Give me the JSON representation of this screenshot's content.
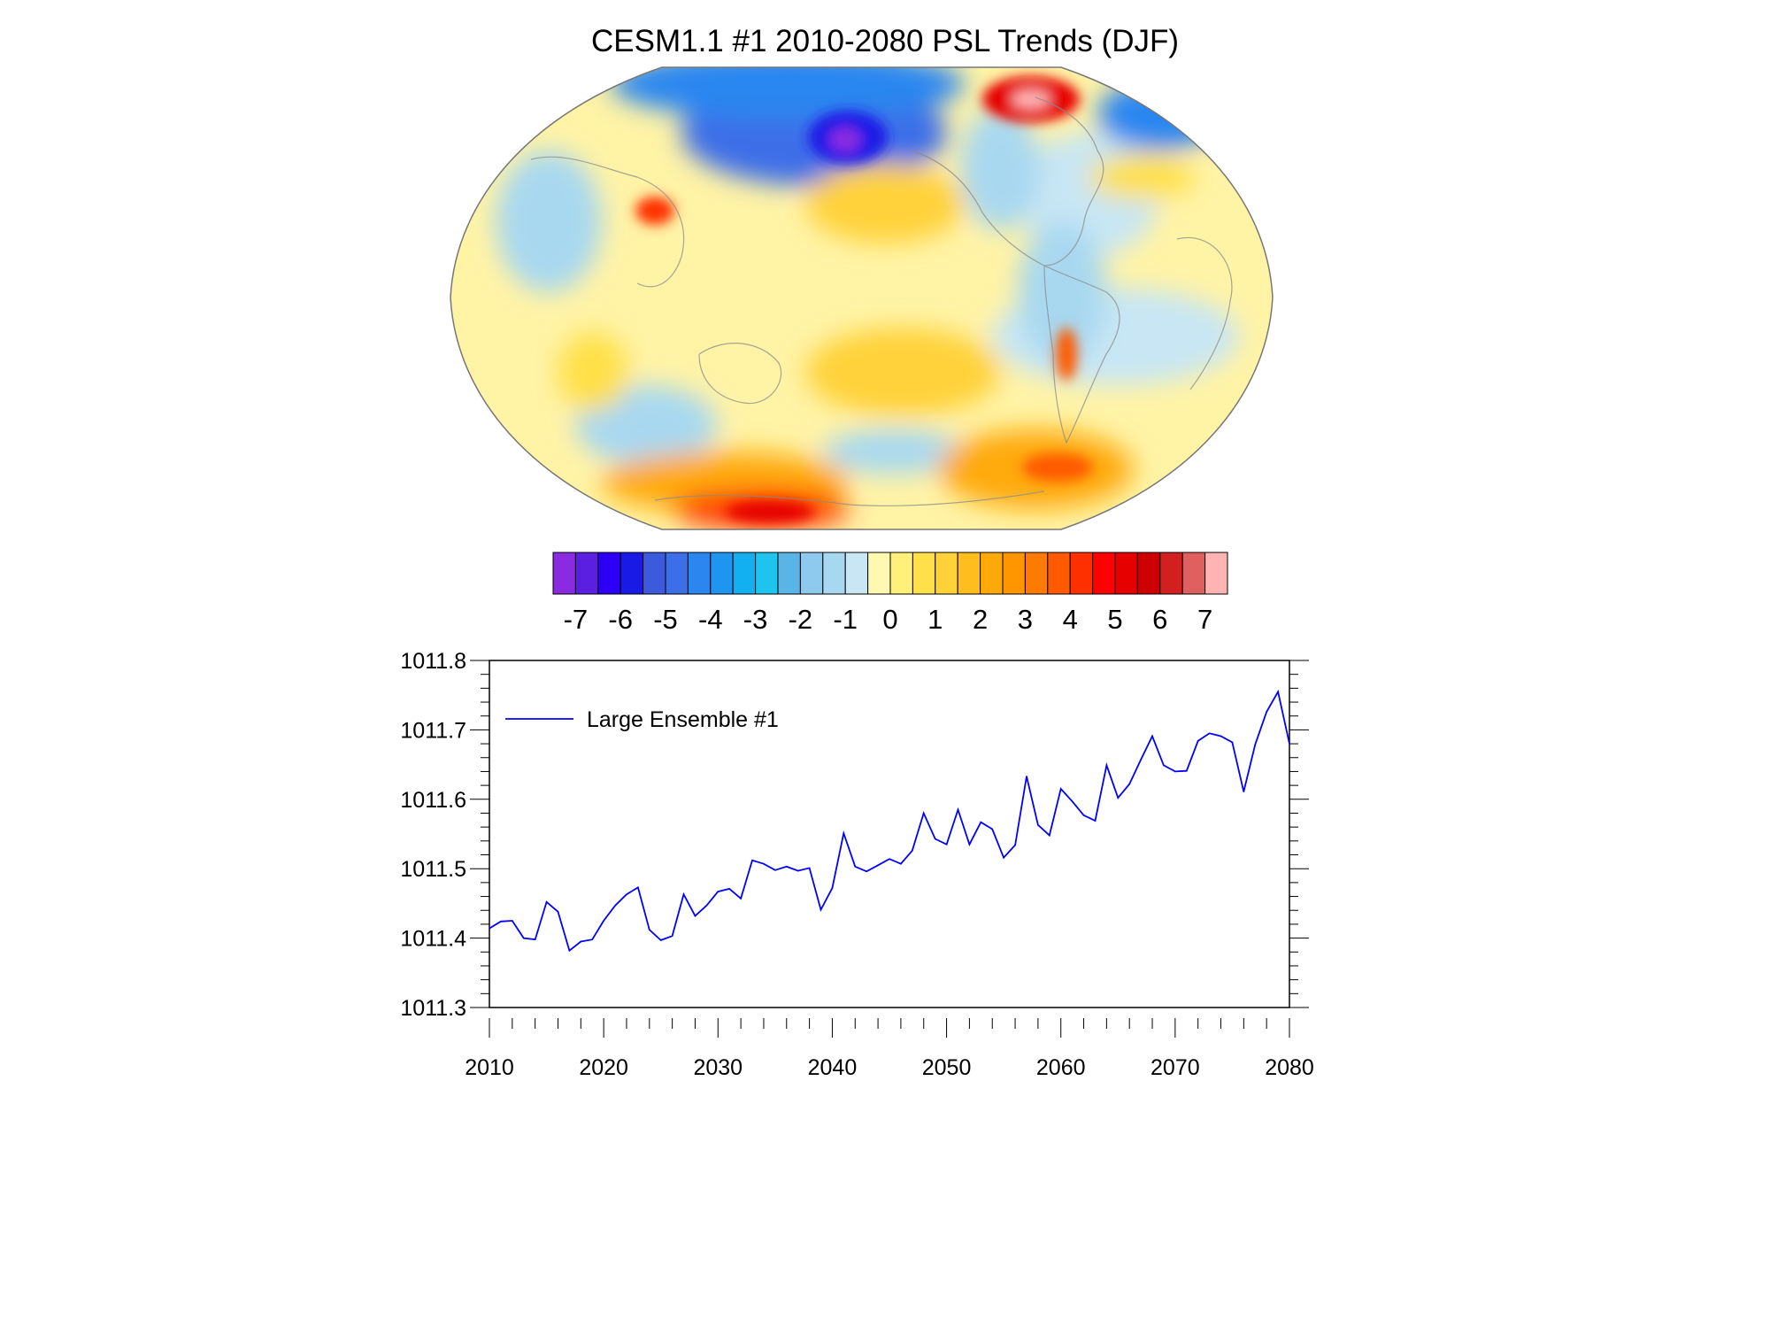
{
  "chart_data": [
    {
      "type": "heatmap",
      "title": "CESM1.1 #1 2010-2080 PSL Trends (DJF)",
      "projection": "Robinson global map, Pacific-centered",
      "field": "PSL trend",
      "colorbar": {
        "labels": [
          "-7",
          "-6",
          "-5",
          "-4",
          "-3",
          "-2",
          "-1",
          "0",
          "1",
          "2",
          "3",
          "4",
          "5",
          "6",
          "7"
        ],
        "colors": [
          "#8a2be2",
          "#5a1fe0",
          "#2b00f5",
          "#1a1ae6",
          "#3b5bdc",
          "#3c6ee8",
          "#2b86f0",
          "#1e96f0",
          "#12b0f0",
          "#1ec3ee",
          "#5ab4e6",
          "#8ec9ee",
          "#a8d8f0",
          "#c8e6f4",
          "#fff8b0",
          "#fff07a",
          "#ffe04a",
          "#ffd23a",
          "#ffbe1e",
          "#ffaa0a",
          "#ff9600",
          "#ff7a00",
          "#ff5a00",
          "#ff3000",
          "#ff0000",
          "#e60000",
          "#cc0000",
          "#d22020",
          "#e06060",
          "#ffb4b4"
        ]
      }
    },
    {
      "type": "line",
      "title": "",
      "xlabel": "",
      "ylabel": "",
      "xlim": [
        2010,
        2080
      ],
      "ylim": [
        1011.3,
        1011.8
      ],
      "xticks": [
        "2010",
        "2020",
        "2030",
        "2040",
        "2050",
        "2060",
        "2070",
        "2080"
      ],
      "yticks": [
        "1011.3",
        "1011.4",
        "1011.5",
        "1011.6",
        "1011.7",
        "1011.8"
      ],
      "legend": "top-left",
      "series": [
        {
          "name": "Large Ensemble #1",
          "color": "#0000ff",
          "x": [
            2010,
            2011,
            2012,
            2013,
            2014,
            2015,
            2016,
            2017,
            2018,
            2019,
            2020,
            2021,
            2022,
            2023,
            2024,
            2025,
            2026,
            2027,
            2028,
            2029,
            2030,
            2031,
            2032,
            2033,
            2034,
            2035,
            2036,
            2037,
            2038,
            2039,
            2040,
            2041,
            2042,
            2043,
            2044,
            2045,
            2046,
            2047,
            2048,
            2049,
            2050,
            2051,
            2052,
            2053,
            2054,
            2055,
            2056,
            2057,
            2058,
            2059,
            2060,
            2061,
            2062,
            2063,
            2064,
            2065,
            2066,
            2067,
            2068,
            2069,
            2070,
            2071,
            2072,
            2073,
            2074,
            2075,
            2076,
            2077,
            2078,
            2079,
            2080
          ],
          "values": [
            1011.414,
            1011.424,
            1011.425,
            1011.4,
            1011.398,
            1011.452,
            1011.438,
            1011.382,
            1011.395,
            1011.398,
            1011.425,
            1011.447,
            1011.463,
            1011.473,
            1011.412,
            1011.397,
            1011.403,
            1011.463,
            1011.432,
            1011.447,
            1011.467,
            1011.471,
            1011.457,
            1011.512,
            1011.507,
            1011.498,
            1011.503,
            1011.497,
            1011.501,
            1011.441,
            1011.472,
            1011.551,
            1011.503,
            1011.496,
            1011.505,
            1011.514,
            1011.507,
            1011.526,
            1011.58,
            1011.543,
            1011.535,
            1011.585,
            1011.535,
            1011.567,
            1011.557,
            1011.516,
            1011.534,
            1011.633,
            1011.563,
            1011.548,
            1011.615,
            1011.597,
            1011.577,
            1011.569,
            1011.649,
            1011.602,
            1011.622,
            1011.657,
            1011.691,
            1011.649,
            1011.64,
            1011.641,
            1011.684,
            1011.695,
            1011.691,
            1011.682,
            1011.611,
            1011.679,
            1011.726,
            1011.755,
            1011.68
          ]
        }
      ]
    }
  ]
}
